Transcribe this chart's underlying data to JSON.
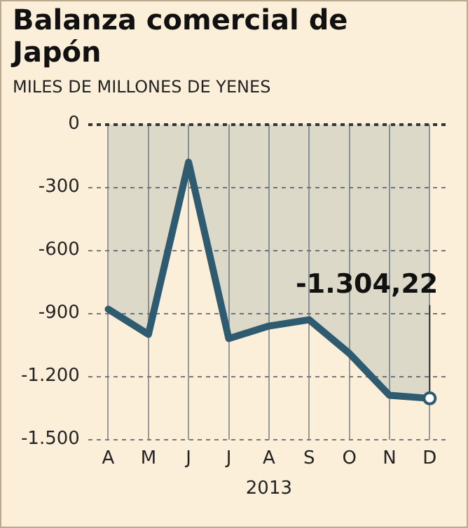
{
  "chart_data": {
    "type": "area",
    "title": "Balanza comercial de Japón",
    "subtitle": "MILES DE MILLONES DE YENES",
    "xlabel": "2013",
    "categories": [
      "A",
      "M",
      "J",
      "J",
      "A",
      "S",
      "O",
      "N",
      "D"
    ],
    "series": [
      {
        "color": "#2e5b70",
        "values": [
          -880,
          -1000,
          -180,
          -1020,
          -960,
          -930,
          -1090,
          -1290,
          -1304.22
        ]
      }
    ],
    "ylim": [
      -1500,
      0
    ],
    "yticks": [
      {
        "value": -1500,
        "label": "-1.500"
      },
      {
        "value": -1200,
        "label": "-1.200"
      },
      -900,
      -600,
      -300,
      0
    ],
    "annotations": [
      {
        "text": "-1.304,22",
        "x": "D",
        "y": -1304.22
      }
    ],
    "grid": true,
    "marker": "none",
    "line_style": "solid"
  }
}
